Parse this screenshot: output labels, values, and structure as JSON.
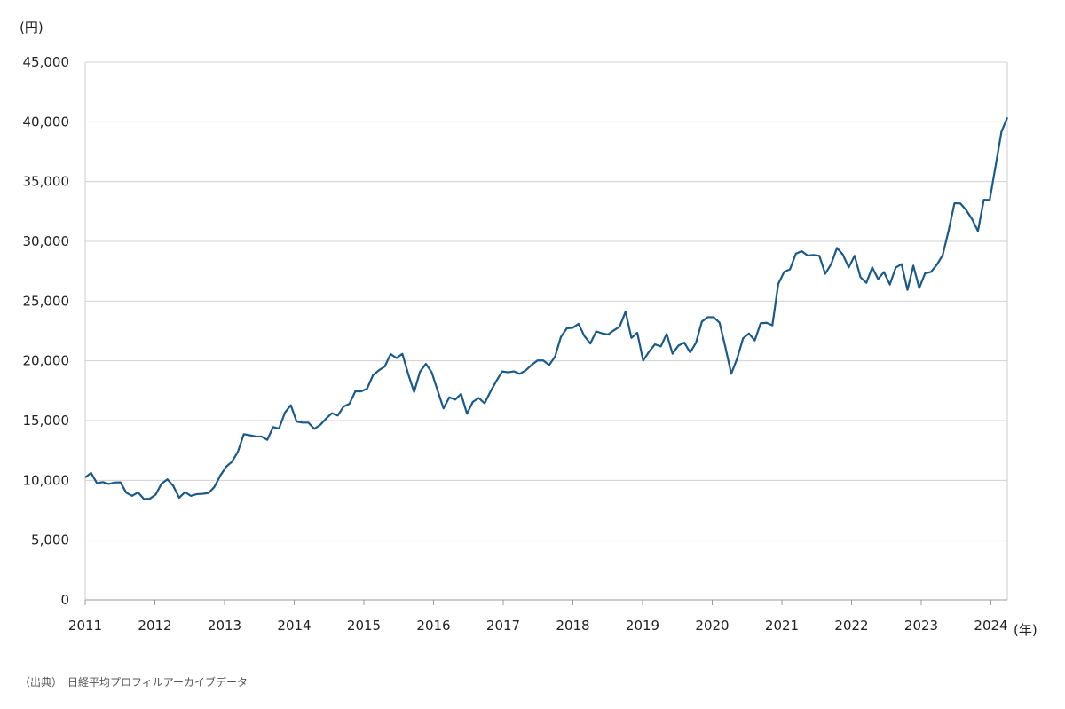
{
  "chart_data": {
    "type": "line",
    "y_unit_label": "(円)",
    "x_unit_label": "(年)",
    "ylim": [
      0,
      45000
    ],
    "y_ticks": [
      0,
      5000,
      10000,
      15000,
      20000,
      25000,
      30000,
      35000,
      40000,
      45000
    ],
    "y_tick_labels": [
      "0",
      "5,000",
      "10,000",
      "15,000",
      "20,000",
      "25,000",
      "30,000",
      "35,000",
      "40,000",
      "45,000"
    ],
    "x_tick_labels": [
      "2011",
      "2012",
      "2013",
      "2014",
      "2015",
      "2016",
      "2017",
      "2018",
      "2019",
      "2020",
      "2021",
      "2022",
      "2023",
      "2024"
    ],
    "grid": true,
    "line_color": "#1a5a8a",
    "series": [
      {
        "values": [
          10237,
          10624,
          9755,
          9850,
          9694,
          9816,
          9833,
          8955,
          8700,
          8988,
          8434,
          8455,
          8803,
          9723,
          10084,
          9521,
          8543,
          9007,
          8695,
          8840,
          8870,
          8928,
          9446,
          10395,
          11139,
          11559,
          12398,
          13861,
          13775,
          13677,
          13668,
          13389,
          14456,
          14328,
          15662,
          16291,
          14915,
          14828,
          14828,
          14304,
          14632,
          15162,
          15621,
          15425,
          16174,
          16414,
          17460,
          17451,
          17674,
          18798,
          19207,
          19520,
          20563,
          20236,
          20585,
          18890,
          17388,
          19083,
          19748,
          19034,
          17518,
          16027,
          16946,
          16759,
          17235,
          15576,
          16569,
          16887,
          16450,
          17425,
          18308,
          19114,
          19041,
          19119,
          18909,
          19197,
          19651,
          20033,
          20033,
          19646,
          20356,
          22012,
          22725,
          22765,
          23098,
          22068,
          21454,
          22468,
          22305,
          22202,
          22554,
          22865,
          24120,
          21920,
          22351,
          20015,
          20773,
          21385,
          21206,
          22259,
          20601,
          21276,
          21522,
          20704,
          21523,
          23294,
          23656,
          23657,
          23205,
          21143,
          18917,
          20194,
          21878,
          22288,
          21710,
          23140,
          23185,
          22977,
          26434,
          27444,
          27663,
          28966,
          29179,
          28813,
          28860,
          28792,
          27284,
          28090,
          29453,
          28893,
          27822,
          28792,
          27002,
          26527,
          27821,
          26848,
          27434,
          26393,
          27801,
          28092,
          25937,
          27969,
          26095,
          27327,
          27446,
          28041,
          28856,
          30888,
          33189,
          33172,
          32619,
          31858,
          30859,
          33487,
          33464,
          36287,
          39166,
          40369
        ]
      }
    ],
    "source": "（出典）　日経平均プロフィルアーカイブデータ"
  }
}
